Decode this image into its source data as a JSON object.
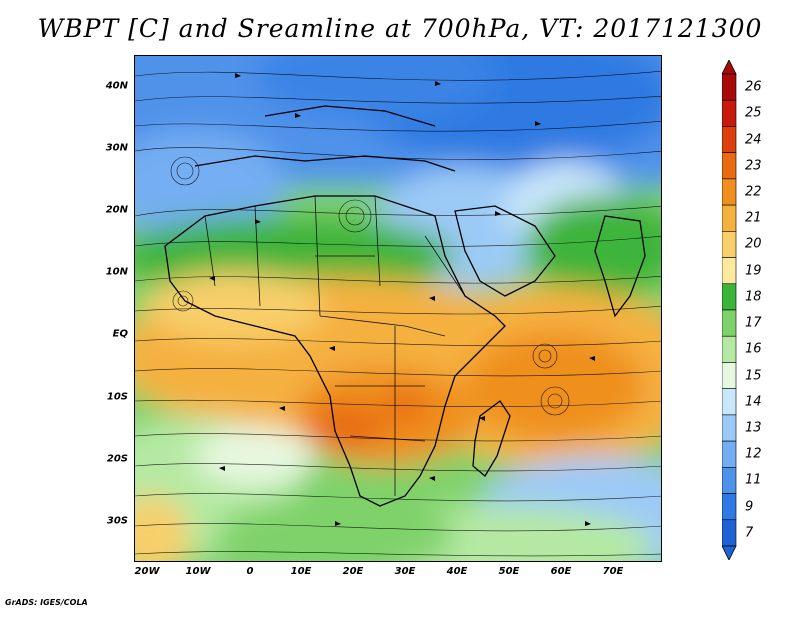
{
  "title": "WBPT [C] and Sreamline at 700hPa, VT: 2017121300",
  "credit": "GrADS: IGES/COLA",
  "map": {
    "lat_labels": [
      "40N",
      "30N",
      "20N",
      "10N",
      "EQ",
      "10S",
      "20S",
      "30S"
    ],
    "lon_labels": [
      "20W",
      "10W",
      "0",
      "10E",
      "20E",
      "30E",
      "40E",
      "50E",
      "60E",
      "70E"
    ]
  },
  "colorbar": {
    "labels": [
      "7",
      "9",
      "11",
      "12",
      "13",
      "14",
      "15",
      "16",
      "17",
      "18",
      "19",
      "20",
      "21",
      "22",
      "23",
      "24",
      "25",
      "26"
    ],
    "colors": [
      "#1f62d6",
      "#2e7ae2",
      "#4f92ea",
      "#74aef2",
      "#9ccaf7",
      "#c9e6fb",
      "#e7f8e0",
      "#b5e9a3",
      "#7fd26a",
      "#3cb43a",
      "#fbe9a0",
      "#f8cf6a",
      "#f5b13f",
      "#ef8f1f",
      "#e86a12",
      "#dd3e0e",
      "#c81a0c",
      "#a80a0a"
    ]
  }
}
